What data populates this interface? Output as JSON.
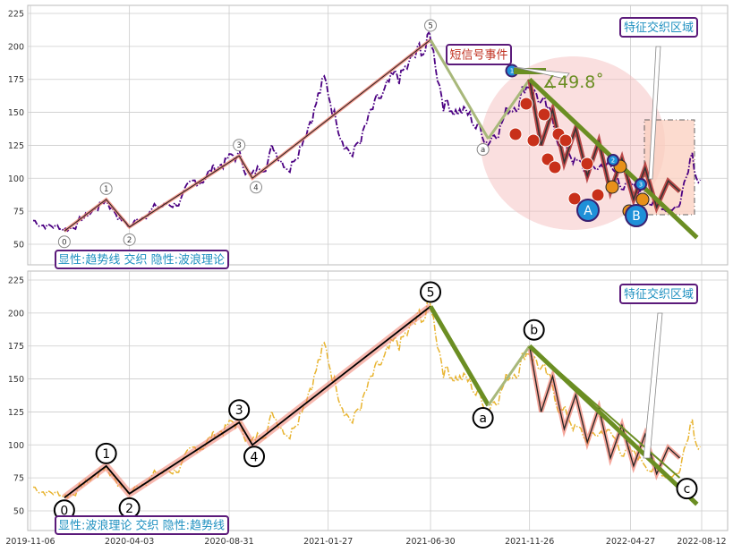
{
  "colors": {
    "panel1_price": "#4b0082",
    "panel2_price": "#e8b430",
    "trend_main": "#6b8e23",
    "trend_light": "#a8b87a",
    "wave_line": "#000000",
    "wave_glow": "#f08070",
    "label_border": "#5b1a7a",
    "label_text": "#1e90c0",
    "short_text": "#c03020",
    "grid": "#cccccc"
  },
  "chart_data": [
    {
      "type": "line",
      "panel": "top",
      "ylim": [
        35,
        230
      ],
      "yticks": [
        "50",
        "75",
        "100",
        "125",
        "150",
        "175",
        "200",
        "225"
      ],
      "ytick_values": [
        50,
        75,
        100,
        125,
        150,
        175,
        200,
        225
      ],
      "wave_points": [
        {
          "label": "0",
          "x": "2019-12-27",
          "y": 60
        },
        {
          "label": "1",
          "x": "2020-02-28",
          "y": 84
        },
        {
          "label": "2",
          "x": "2020-04-03",
          "y": 63
        },
        {
          "label": "3",
          "x": "2020-09-15",
          "y": 117
        },
        {
          "label": "4",
          "x": "2020-10-05",
          "y": 100
        },
        {
          "label": "5",
          "x": "2021-06-30",
          "y": 205
        },
        {
          "label": "a",
          "x": "2021-09-25",
          "y": 130
        }
      ],
      "trendline": [
        {
          "x": "2021-11-26",
          "y": 175
        },
        {
          "x": "2022-08-05",
          "y": 55
        }
      ],
      "angle_text": "∡49.8˚",
      "annotations": {
        "short_signal": "短信号事件",
        "feature_zone": "特征交织区域",
        "point_A": "A",
        "point_B": "B",
        "small_marker": "1",
        "marker_2": "2",
        "marker_3": "3"
      },
      "legend_label": "显性:趋势线 交织 隐性:波浪理论"
    },
    {
      "type": "line",
      "panel": "bottom",
      "ylim": [
        35,
        230
      ],
      "yticks": [
        "50",
        "75",
        "100",
        "125",
        "150",
        "175",
        "200",
        "225"
      ],
      "ytick_values": [
        50,
        75,
        100,
        125,
        150,
        175,
        200,
        225
      ],
      "xticks": [
        "2019-11-06",
        "2020-04-03",
        "2020-08-31",
        "2021-01-27",
        "2021-06-30",
        "2021-11-26",
        "2022-04-27",
        "2022-08-12"
      ],
      "wave_points": [
        {
          "label": "0",
          "x": "2019-12-27",
          "y": 60
        },
        {
          "label": "1",
          "x": "2020-02-28",
          "y": 84
        },
        {
          "label": "2",
          "x": "2020-04-03",
          "y": 63
        },
        {
          "label": "3",
          "x": "2020-09-15",
          "y": 117
        },
        {
          "label": "4",
          "x": "2020-10-05",
          "y": 100
        },
        {
          "label": "5",
          "x": "2021-06-30",
          "y": 205
        },
        {
          "label": "a",
          "x": "2021-09-25",
          "y": 130
        },
        {
          "label": "b",
          "x": "2021-11-26",
          "y": 175
        },
        {
          "label": "c",
          "x": "2022-07-10",
          "y": 75
        }
      ],
      "trendline": [
        {
          "x": "2021-11-26",
          "y": 175
        },
        {
          "x": "2022-08-05",
          "y": 55
        }
      ],
      "annotations": {
        "feature_zone": "特征交织区域"
      },
      "legend_label": "显性:波浪理论 交织 隐性:趋势线"
    }
  ]
}
